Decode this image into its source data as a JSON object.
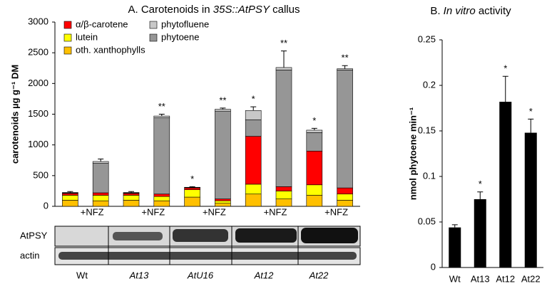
{
  "chart_data": [
    {
      "type": "stacked_bar",
      "title": [
        "A. Carotenoids in ",
        "35S::AtPSY",
        " callus"
      ],
      "title_italic_parts": [
        1
      ],
      "y_label": "carotenoids µg g⁻¹ DM",
      "categories": [
        null,
        "+NFZ",
        null,
        "+NFZ",
        null,
        "+NFZ",
        null,
        "+NFZ",
        null,
        "+NFZ"
      ],
      "series": [
        {
          "name": "oth. xanthophylls",
          "color": "#ffc000",
          "values": [
            100,
            90,
            100,
            90,
            150,
            50,
            200,
            120,
            180,
            100
          ]
        },
        {
          "name": "lutein",
          "color": "#ffff00",
          "values": [
            80,
            90,
            80,
            70,
            120,
            40,
            160,
            130,
            170,
            100
          ]
        },
        {
          "name": "α/β-carotene",
          "color": "#ff0000",
          "values": [
            30,
            40,
            30,
            40,
            30,
            30,
            780,
            70,
            550,
            100
          ]
        },
        {
          "name": "phytoene",
          "color": "#969696",
          "values": [
            10,
            480,
            10,
            1240,
            5,
            1430,
            270,
            1900,
            300,
            1920
          ]
        },
        {
          "name": "phytofluene",
          "color": "#c8c8c8",
          "values": [
            5,
            30,
            5,
            30,
            5,
            30,
            150,
            40,
            40,
            20
          ]
        }
      ],
      "errors": [
        15,
        40,
        15,
        30,
        10,
        20,
        60,
        270,
        30,
        50
      ],
      "significance": [
        null,
        null,
        null,
        "**",
        "*",
        "**",
        "*",
        "**",
        "*",
        "**"
      ],
      "ylim": [
        0,
        3000
      ],
      "yticks": [
        0,
        500,
        1000,
        1500,
        2000,
        2500,
        3000
      ],
      "grid": false
    },
    {
      "type": "bar",
      "title": [
        "B. ",
        "In vitro",
        " activity"
      ],
      "title_italic_parts": [
        1
      ],
      "y_label": "nmol phytoene min⁻¹",
      "categories": [
        "Wt",
        "At13",
        "At12",
        "At22"
      ],
      "values": [
        0.044,
        0.075,
        0.182,
        0.148
      ],
      "color": "#000000",
      "errors": [
        0.003,
        0.008,
        0.028,
        0.015
      ],
      "significance": [
        null,
        "*",
        "*",
        "*"
      ],
      "ylim": [
        0,
        0.25
      ],
      "yticks": [
        0,
        0.05,
        0.1,
        0.15,
        0.2,
        0.25
      ],
      "grid": false
    }
  ],
  "blot": {
    "rows": [
      "AtPSY",
      "actin"
    ],
    "lanes": [
      "Wt",
      "At13",
      "AtU16",
      "At12",
      "At22"
    ]
  }
}
